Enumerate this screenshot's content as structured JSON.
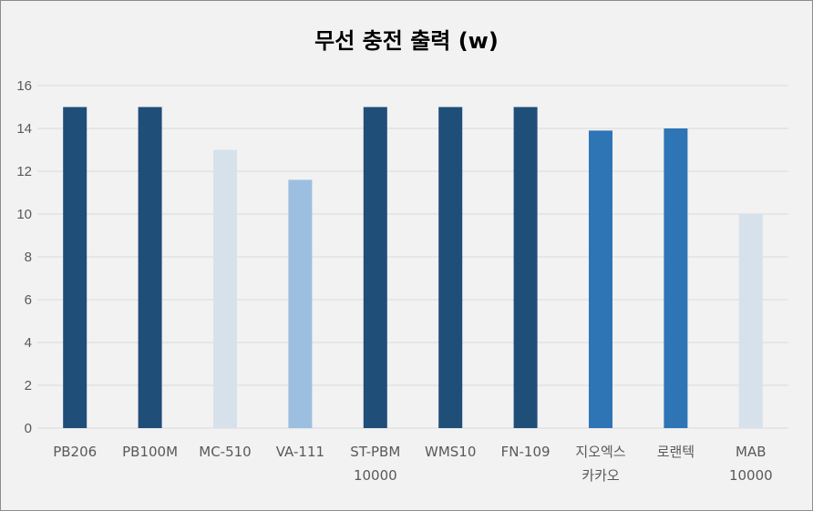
{
  "chart_data": {
    "type": "bar",
    "title": "무선 충전 출력 (w)",
    "xlabel": "",
    "ylabel": "",
    "ylim": [
      0,
      16
    ],
    "yticks": [
      0,
      2,
      4,
      6,
      8,
      10,
      12,
      14,
      16
    ],
    "grid": true,
    "legend": "none",
    "categories": [
      [
        "PB206"
      ],
      [
        "PB100M"
      ],
      [
        "MC-510"
      ],
      [
        "VA-111"
      ],
      [
        "ST-PBM",
        "10000"
      ],
      [
        "WMS10"
      ],
      [
        "FN-109"
      ],
      [
        "지오엑스",
        "카카오"
      ],
      [
        "로랜텍"
      ],
      [
        "MAB",
        "10000"
      ]
    ],
    "values": [
      15,
      15,
      13,
      11.6,
      15,
      15,
      15,
      13.9,
      14,
      10
    ],
    "colors": [
      "#1f4e79",
      "#1f4e79",
      "#d6e1ec",
      "#9dbfdf",
      "#1f4e79",
      "#1f4e79",
      "#1f4e79",
      "#2e75b6",
      "#2e75b6",
      "#d6e1ec"
    ]
  }
}
